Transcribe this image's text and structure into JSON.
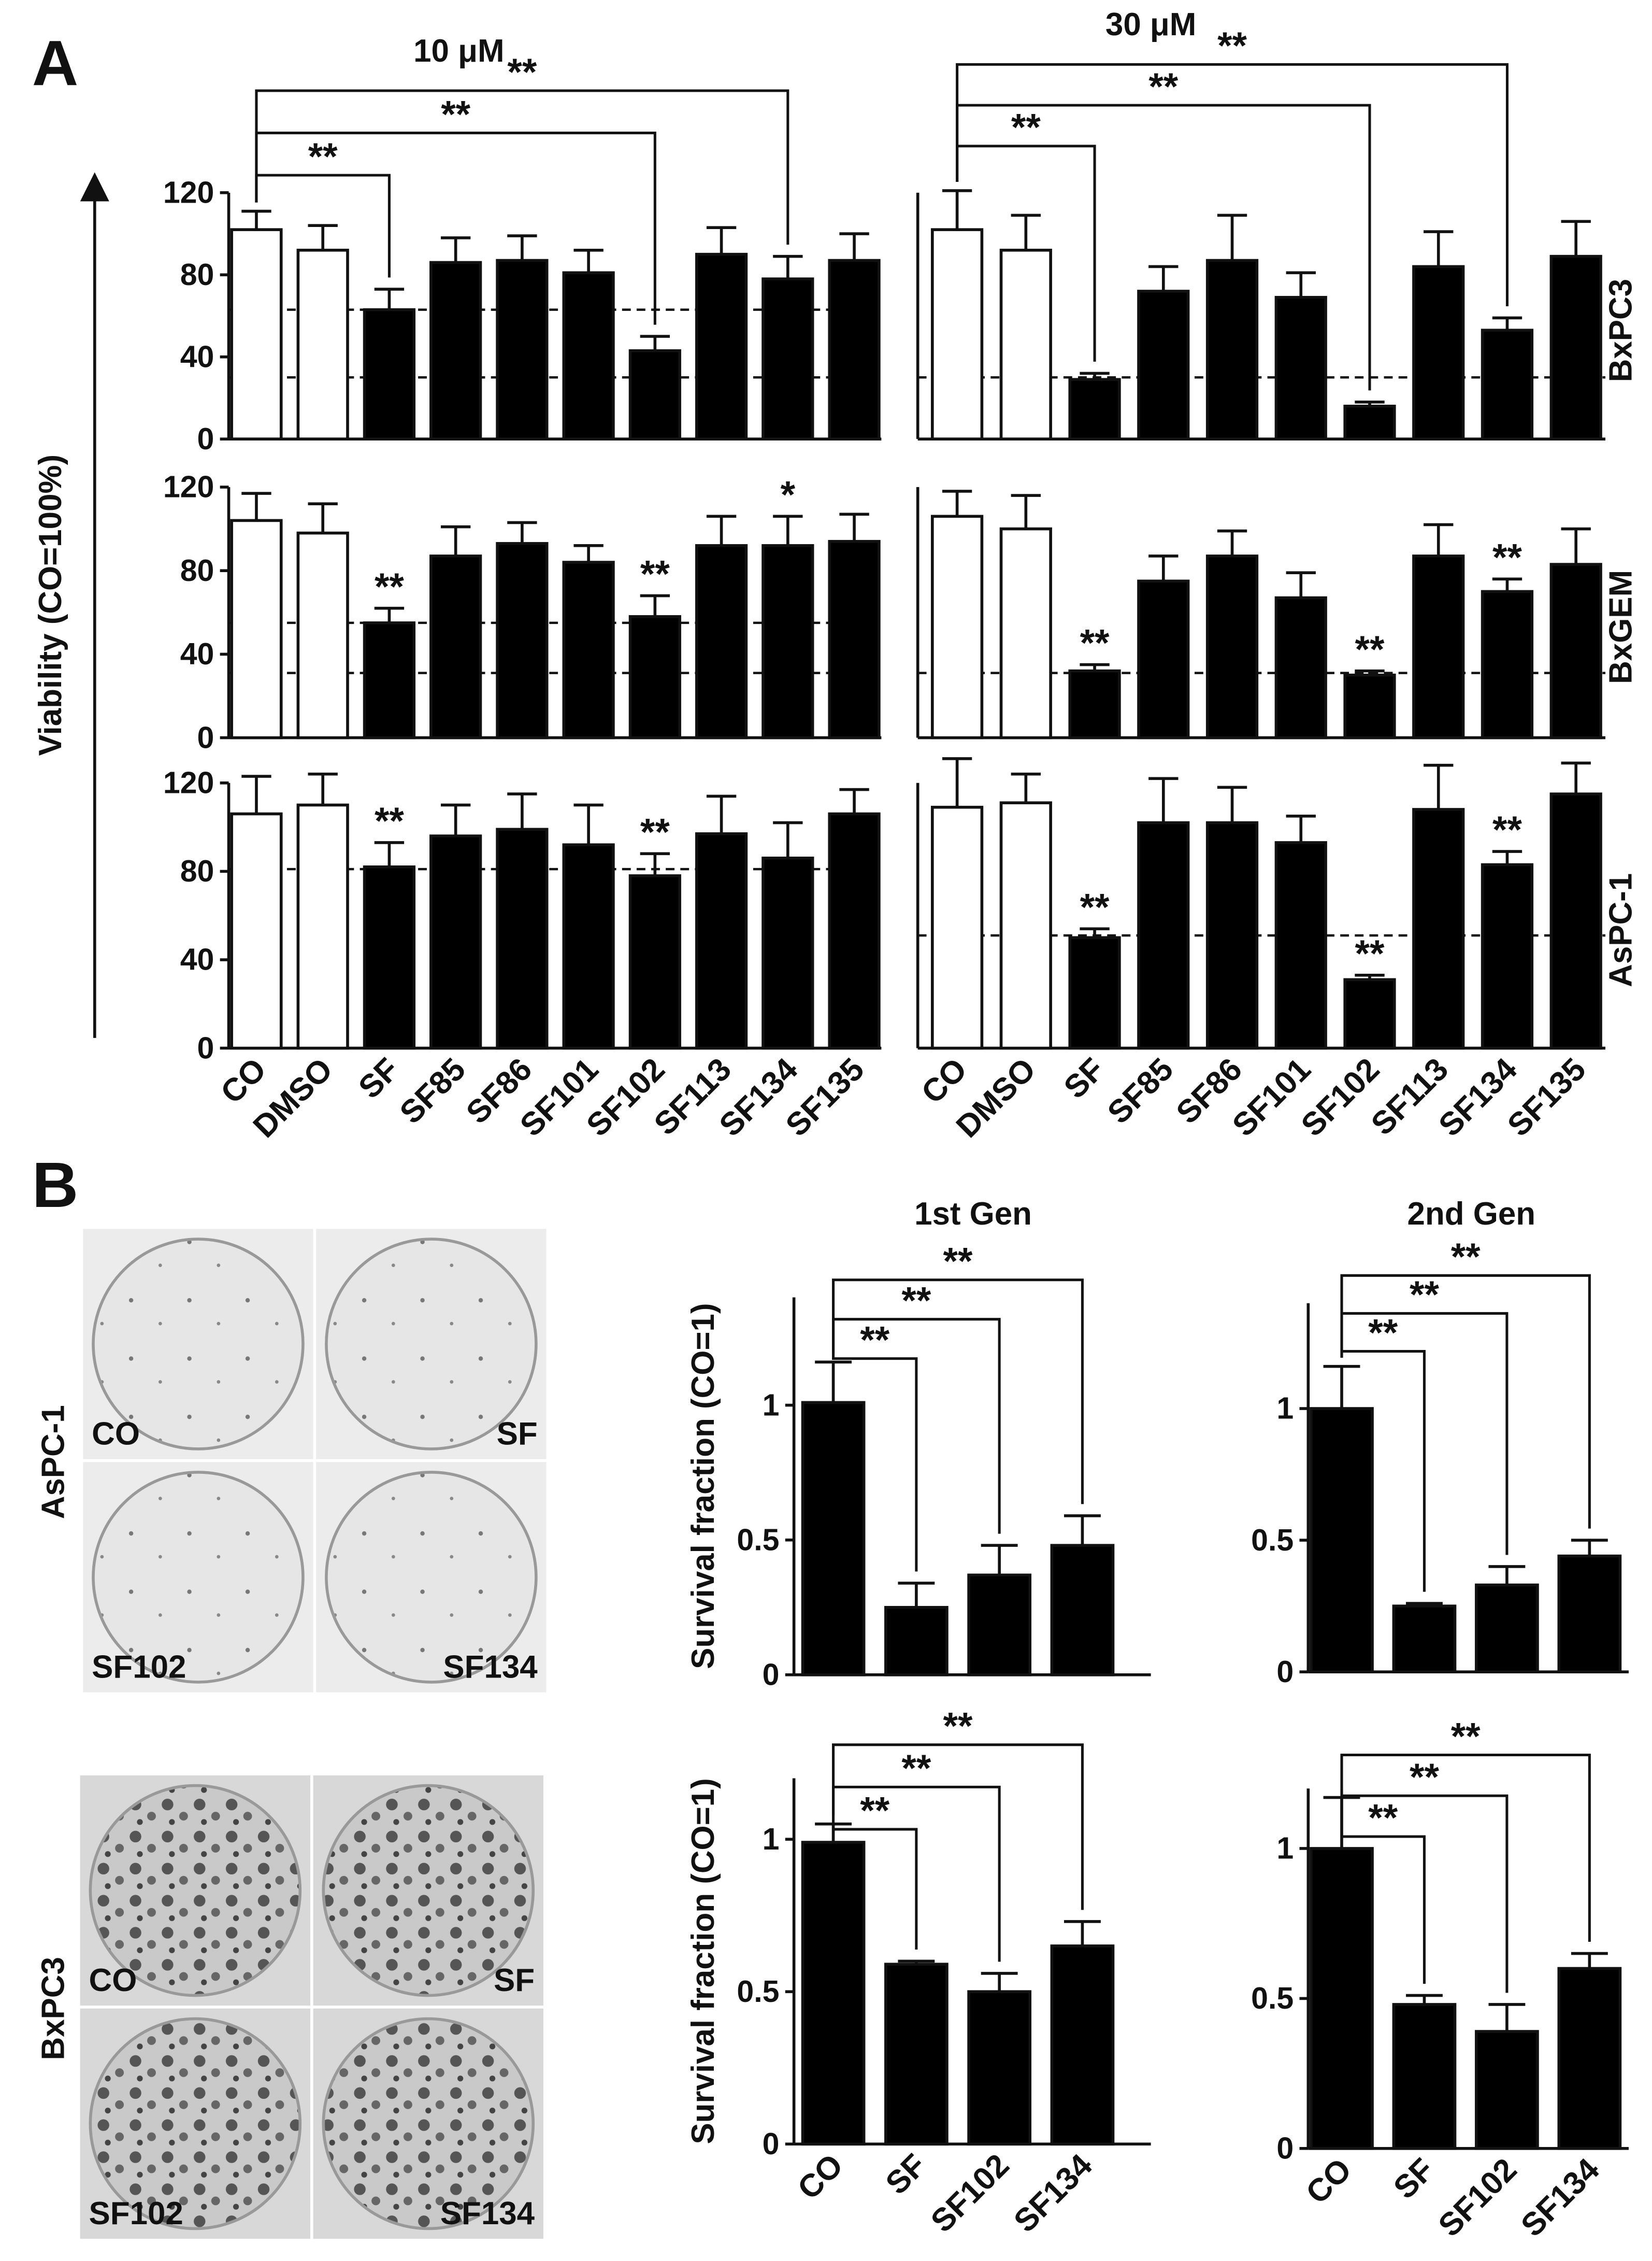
{
  "panel_labels": [
    "A",
    "B"
  ],
  "photos": [
    {
      "cell_line": "AsPC-1",
      "captions": [
        "CO",
        "SF",
        "SF102",
        "SF134"
      ]
    },
    {
      "cell_line": "BxPC3",
      "captions": [
        "CO",
        "SF",
        "SF102",
        "SF134"
      ]
    }
  ],
  "chart_data": [
    {
      "type": "bar",
      "title": "10 μM",
      "values": [
        102,
        92,
        63,
        86,
        87,
        81,
        43,
        90,
        78,
        87
      ],
      "errors": [
        9,
        12,
        10,
        12,
        12,
        11,
        7,
        13,
        11,
        13
      ],
      "colors": [
        "#ffffff",
        "#ffffff",
        "#000000",
        "#000000",
        "#000000",
        "#000000",
        "#000000",
        "#000000",
        "#000000",
        "#000000"
      ],
      "ylim": [
        0,
        120
      ],
      "yticks": [
        0,
        40,
        80,
        120
      ],
      "reference_lines": [
        63,
        30
      ],
      "brackets": [
        null,
        null,
        "**",
        null,
        null,
        null,
        "**",
        null,
        "**",
        null
      ]
    },
    {
      "type": "bar",
      "title": "30 μM",
      "row_label": "BxPC3",
      "values": [
        102,
        92,
        29,
        72,
        87,
        69,
        16,
        84,
        53,
        89
      ],
      "errors": [
        19,
        17,
        3,
        12,
        22,
        12,
        2,
        17,
        6,
        17
      ],
      "colors": [
        "#ffffff",
        "#ffffff",
        "#000000",
        "#000000",
        "#000000",
        "#000000",
        "#000000",
        "#000000",
        "#000000",
        "#000000"
      ],
      "ylim": [
        0,
        120
      ],
      "reference_lines": [
        30
      ],
      "brackets": [
        null,
        null,
        "**",
        null,
        null,
        null,
        "**",
        null,
        "**",
        null
      ]
    },
    {
      "type": "bar",
      "ylabel": "Viability (CO=100%)",
      "values": [
        104,
        98,
        55,
        87,
        93,
        84,
        58,
        92,
        92,
        94
      ],
      "errors": [
        13,
        14,
        7,
        14,
        10,
        8,
        10,
        14,
        14,
        13
      ],
      "colors": [
        "#ffffff",
        "#ffffff",
        "#000000",
        "#000000",
        "#000000",
        "#000000",
        "#000000",
        "#000000",
        "#000000",
        "#000000"
      ],
      "ylim": [
        0,
        120
      ],
      "yticks": [
        0,
        40,
        80,
        120
      ],
      "reference_lines": [
        55,
        31
      ],
      "significance": [
        null,
        null,
        "**",
        null,
        null,
        null,
        "**",
        null,
        "*",
        null
      ]
    },
    {
      "type": "bar",
      "row_label": "BxGEM",
      "values": [
        106,
        100,
        32,
        75,
        87,
        67,
        30,
        87,
        70,
        83
      ],
      "errors": [
        12,
        16,
        3,
        12,
        12,
        12,
        2,
        15,
        6,
        17
      ],
      "colors": [
        "#ffffff",
        "#ffffff",
        "#000000",
        "#000000",
        "#000000",
        "#000000",
        "#000000",
        "#000000",
        "#000000",
        "#000000"
      ],
      "ylim": [
        0,
        120
      ],
      "reference_lines": [
        31
      ],
      "significance": [
        null,
        null,
        "**",
        null,
        null,
        null,
        "**",
        null,
        "**",
        null
      ]
    },
    {
      "type": "bar",
      "categories": [
        "CO",
        "DMSO",
        "SF",
        "SF85",
        "SF86",
        "SF101",
        "SF102",
        "SF113",
        "SF134",
        "SF135"
      ],
      "values": [
        106,
        110,
        82,
        96,
        99,
        92,
        78,
        97,
        86,
        106
      ],
      "errors": [
        17,
        14,
        11,
        14,
        16,
        18,
        10,
        17,
        16,
        11
      ],
      "colors": [
        "#ffffff",
        "#ffffff",
        "#000000",
        "#000000",
        "#000000",
        "#000000",
        "#000000",
        "#000000",
        "#000000",
        "#000000"
      ],
      "ylim": [
        0,
        120
      ],
      "yticks": [
        0,
        40,
        80,
        120
      ],
      "reference_lines": [
        81
      ],
      "significance": [
        null,
        null,
        "**",
        null,
        null,
        null,
        "**",
        null,
        null,
        null
      ]
    },
    {
      "type": "bar",
      "row_label": "AsPC-1",
      "categories": [
        "CO",
        "DMSO",
        "SF",
        "SF85",
        "SF86",
        "SF101",
        "SF102",
        "SF113",
        "SF134",
        "SF135"
      ],
      "values": [
        109,
        111,
        50,
        102,
        102,
        93,
        31,
        108,
        83,
        115
      ],
      "errors": [
        22,
        13,
        4,
        20,
        16,
        12,
        2,
        20,
        6,
        14
      ],
      "colors": [
        "#ffffff",
        "#ffffff",
        "#000000",
        "#000000",
        "#000000",
        "#000000",
        "#000000",
        "#000000",
        "#000000",
        "#000000"
      ],
      "ylim": [
        0,
        120
      ],
      "reference_lines": [
        51
      ],
      "significance": [
        null,
        null,
        "**",
        null,
        null,
        null,
        "**",
        null,
        "**",
        null
      ]
    },
    {
      "type": "bar",
      "title": "1st Gen",
      "ylabel": "Survival fraction (CO=1)",
      "values": [
        1.01,
        0.25,
        0.37,
        0.48
      ],
      "errors": [
        0.15,
        0.09,
        0.11,
        0.11
      ],
      "color": "#000000",
      "ylim": [
        0,
        1.4
      ],
      "yticks": [
        0,
        0.5,
        1
      ],
      "brackets": [
        null,
        "**",
        "**",
        "**"
      ]
    },
    {
      "type": "bar",
      "title": "2nd Gen",
      "values": [
        1.0,
        0.25,
        0.33,
        0.44
      ],
      "errors": [
        0.16,
        0.01,
        0.07,
        0.06
      ],
      "color": "#000000",
      "ylim": [
        0,
        1.4
      ],
      "yticks": [
        0,
        0.5,
        1
      ],
      "brackets": [
        null,
        "**",
        "**",
        "**"
      ]
    },
    {
      "type": "bar",
      "ylabel": "Survival fraction (CO=1)",
      "categories": [
        "CO",
        "SF",
        "SF102",
        "SF134"
      ],
      "values": [
        0.99,
        0.59,
        0.5,
        0.65
      ],
      "errors": [
        0.06,
        0.01,
        0.06,
        0.08
      ],
      "color": "#000000",
      "ylim": [
        0,
        1.2
      ],
      "yticks": [
        0,
        0.5,
        1
      ],
      "brackets": [
        null,
        "**",
        "**",
        "**"
      ]
    },
    {
      "type": "bar",
      "categories": [
        "CO",
        "SF",
        "SF102",
        "SF134"
      ],
      "values": [
        1.0,
        0.48,
        0.39,
        0.6
      ],
      "errors": [
        0.17,
        0.03,
        0.09,
        0.05
      ],
      "color": "#000000",
      "ylim": [
        0,
        1.2
      ],
      "yticks": [
        0,
        0.5,
        1
      ],
      "brackets": [
        null,
        "**",
        "**",
        "**"
      ]
    }
  ]
}
